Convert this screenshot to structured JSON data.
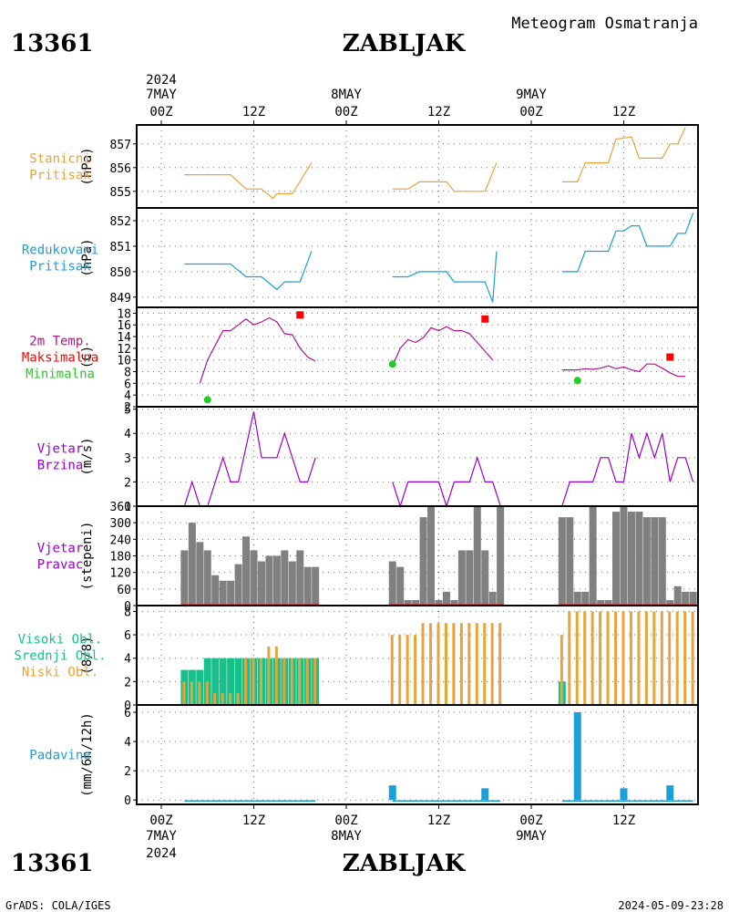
{
  "header": {
    "station_id": "13361",
    "station_name": "ZABLJAK",
    "subtitle": "Meteogram Osmatranja",
    "footer_left": "GrADS: COLA/IGES",
    "footer_right": "2024-05-09-23:28"
  },
  "time_axis": {
    "year": "2024",
    "ticks": [
      "00Z",
      "12Z",
      "00Z",
      "12Z",
      "00Z",
      "12Z"
    ],
    "days": [
      {
        "label": "7MAY",
        "hour": 0
      },
      {
        "label": "8MAY",
        "hour": 24
      },
      {
        "label": "9MAY",
        "hour": 48
      }
    ]
  },
  "colors": {
    "station_pressure": "#e8a33a",
    "reduced_pressure": "#1a9fd6",
    "temperature": "#b0148f",
    "temp_max": "#ff0000",
    "temp_min": "#22cc22",
    "wind": "#9900cc",
    "wind_dir_bar": "#808080",
    "wind_dir_base": "#cc3333",
    "high_cloud": "#18c08c",
    "mid_cloud": "#18c08c",
    "low_cloud": "#e8a33a",
    "precip": "#1a9fd6"
  },
  "chart_data": [
    {
      "type": "line",
      "name": "station_pressure",
      "labels": [
        "Stanicni",
        "Pritisak"
      ],
      "ylabel": "(hPa)",
      "ylim": [
        854.3,
        857.8
      ],
      "yticks": [
        855,
        856,
        857
      ],
      "segments": [
        [
          [
            3,
            855.7
          ],
          [
            9,
            855.7
          ],
          [
            11,
            855.1
          ],
          [
            13,
            855.1
          ],
          [
            14.5,
            854.7
          ],
          [
            15,
            854.9
          ],
          [
            17,
            854.9
          ],
          [
            19.5,
            856.2
          ]
        ],
        [
          [
            30,
            855.1
          ],
          [
            32,
            855.1
          ],
          [
            33.5,
            855.4
          ],
          [
            37,
            855.4
          ],
          [
            38,
            855
          ],
          [
            42,
            855
          ],
          [
            43.5,
            856.2
          ]
        ],
        [
          [
            52,
            855.4
          ],
          [
            54,
            855.4
          ],
          [
            55,
            856.2
          ],
          [
            58,
            856.2
          ],
          [
            59,
            857.2
          ],
          [
            61,
            857.3
          ],
          [
            62,
            856.4
          ],
          [
            65,
            856.4
          ],
          [
            66,
            857
          ],
          [
            67,
            857
          ],
          [
            68,
            857.7
          ]
        ]
      ]
    },
    {
      "type": "line",
      "name": "reduced_pressure",
      "labels": [
        "Redukovani",
        "Pritisak"
      ],
      "ylabel": "(hPa)",
      "ylim": [
        848.6,
        852.5
      ],
      "yticks": [
        849,
        850,
        851,
        852
      ],
      "segments": [
        [
          [
            3,
            850.3
          ],
          [
            9,
            850.3
          ],
          [
            11,
            849.8
          ],
          [
            13,
            849.8
          ],
          [
            15,
            849.3
          ],
          [
            16,
            849.6
          ],
          [
            18,
            849.6
          ],
          [
            19.5,
            850.8
          ]
        ],
        [
          [
            30,
            849.8
          ],
          [
            32,
            849.8
          ],
          [
            33.5,
            850
          ],
          [
            37,
            850
          ],
          [
            38,
            849.6
          ],
          [
            42,
            849.6
          ],
          [
            43,
            848.8
          ],
          [
            43.5,
            850.8
          ]
        ],
        [
          [
            52,
            850
          ],
          [
            54,
            850
          ],
          [
            55,
            850.8
          ],
          [
            58,
            850.8
          ],
          [
            59,
            851.6
          ],
          [
            60,
            851.6
          ],
          [
            61,
            851.8
          ],
          [
            62,
            851.8
          ],
          [
            63,
            851
          ],
          [
            66,
            851
          ],
          [
            67,
            851.5
          ],
          [
            68,
            851.5
          ],
          [
            69,
            852.3
          ]
        ]
      ]
    },
    {
      "type": "line",
      "name": "temperature_2m",
      "labels": [
        "2m Temp.",
        "Maksimalna",
        "Minimalna"
      ],
      "ylabel": "(C)",
      "ylim": [
        2,
        19
      ],
      "yticks": [
        2,
        4,
        6,
        8,
        10,
        12,
        14,
        16,
        18
      ],
      "segments": [
        [
          [
            5,
            6
          ],
          [
            6,
            10
          ],
          [
            7,
            12.5
          ],
          [
            8,
            15
          ],
          [
            9,
            15
          ],
          [
            10,
            16
          ],
          [
            11,
            17
          ],
          [
            12,
            16
          ],
          [
            13,
            16.5
          ],
          [
            14,
            17.2
          ],
          [
            15,
            16.5
          ],
          [
            16,
            14.5
          ],
          [
            17,
            14.3
          ],
          [
            18,
            12
          ],
          [
            19,
            10.5
          ],
          [
            20,
            9.8
          ]
        ],
        [
          [
            30,
            9
          ],
          [
            31,
            12
          ],
          [
            32,
            13.5
          ],
          [
            33,
            13
          ],
          [
            34,
            13.8
          ],
          [
            35,
            15.5
          ],
          [
            36,
            15
          ],
          [
            37,
            15.7
          ],
          [
            38,
            15
          ],
          [
            39,
            15
          ],
          [
            40,
            14.5
          ],
          [
            41,
            13
          ],
          [
            42,
            11.5
          ],
          [
            43,
            10
          ]
        ],
        [
          [
            52,
            8.3
          ],
          [
            53,
            8.3
          ],
          [
            54,
            8.3
          ],
          [
            55,
            8.5
          ],
          [
            56,
            8.4
          ],
          [
            57,
            8.6
          ],
          [
            58,
            9
          ],
          [
            59,
            8.5
          ],
          [
            60,
            8.8
          ],
          [
            61,
            8.3
          ],
          [
            62,
            8
          ],
          [
            63,
            9.3
          ],
          [
            64,
            9.3
          ],
          [
            65,
            8.6
          ],
          [
            66,
            7.8
          ],
          [
            67,
            7.2
          ],
          [
            68,
            7.2
          ]
        ]
      ],
      "maximum": [
        [
          18,
          17.7
        ],
        [
          42,
          17
        ]
      ],
      "minimum": [
        [
          6,
          3.2
        ],
        [
          30,
          9.3
        ],
        [
          54,
          6.5
        ]
      ],
      "maximum_extra": [
        [
          66,
          10.5
        ]
      ]
    },
    {
      "type": "line",
      "name": "wind_speed",
      "labels": [
        "Vjetar",
        "Brzina"
      ],
      "ylabel": "(m/s)",
      "ylim": [
        1,
        5.1
      ],
      "yticks": [
        1,
        2,
        3,
        4,
        5
      ],
      "segments": [
        [
          [
            3,
            1
          ],
          [
            4,
            2
          ],
          [
            5,
            1
          ],
          [
            6,
            1
          ],
          [
            8,
            3
          ],
          [
            9,
            2
          ],
          [
            10,
            2
          ],
          [
            12,
            4.9
          ],
          [
            13,
            3
          ],
          [
            15,
            3
          ],
          [
            16,
            4
          ],
          [
            18,
            2
          ],
          [
            19,
            2
          ],
          [
            20,
            3
          ]
        ],
        [
          [
            30,
            2
          ],
          [
            31,
            1
          ],
          [
            32,
            2
          ],
          [
            36,
            2
          ],
          [
            37,
            1
          ],
          [
            38,
            2
          ],
          [
            40,
            2
          ],
          [
            41,
            3
          ],
          [
            42,
            2
          ],
          [
            43,
            2
          ],
          [
            44,
            1
          ]
        ],
        [
          [
            52,
            1
          ],
          [
            53,
            2
          ],
          [
            56,
            2
          ],
          [
            57,
            3
          ],
          [
            58,
            3
          ],
          [
            59,
            2
          ],
          [
            60,
            2
          ],
          [
            61,
            4
          ],
          [
            62,
            3
          ],
          [
            63,
            4
          ],
          [
            64,
            3
          ],
          [
            65,
            4
          ],
          [
            66,
            2
          ],
          [
            67,
            3
          ],
          [
            68,
            3
          ],
          [
            69,
            2
          ]
        ]
      ]
    },
    {
      "type": "bar",
      "name": "wind_direction",
      "labels": [
        "Vjetar",
        "Pravac"
      ],
      "ylabel": "(stepeni)",
      "ylim": [
        0,
        360
      ],
      "yticks": [
        0,
        60,
        120,
        180,
        240,
        300,
        360
      ],
      "x": [
        3,
        4,
        5,
        6,
        7,
        8,
        9,
        10,
        11,
        12,
        13,
        14,
        15,
        16,
        17,
        18,
        19,
        20,
        30,
        31,
        32,
        33,
        34,
        35,
        36,
        37,
        38,
        39,
        40,
        41,
        42,
        43,
        44,
        52,
        53,
        54,
        55,
        56,
        57,
        58,
        59,
        60,
        61,
        62,
        63,
        64,
        65,
        66,
        67,
        68,
        69
      ],
      "values": [
        200,
        300,
        230,
        200,
        110,
        90,
        90,
        150,
        250,
        200,
        160,
        180,
        180,
        200,
        160,
        200,
        140,
        140,
        160,
        140,
        20,
        20,
        320,
        360,
        20,
        50,
        20,
        200,
        200,
        360,
        200,
        50,
        360,
        320,
        320,
        50,
        50,
        360,
        20,
        20,
        340,
        360,
        340,
        340,
        320,
        320,
        320,
        20,
        70,
        50,
        50
      ]
    },
    {
      "type": "bar",
      "name": "cloud_cover",
      "labels": [
        "Visoki Obl.",
        "Srednji Obl.",
        "Niski Obl."
      ],
      "ylabel": "(8/8)",
      "ylim": [
        0,
        8.5
      ],
      "yticks": [
        0,
        2,
        4,
        6,
        8
      ],
      "x": [
        3,
        4,
        5,
        6,
        7,
        8,
        9,
        10,
        11,
        12,
        13,
        14,
        15,
        16,
        17,
        18,
        19,
        20,
        30,
        31,
        32,
        33,
        34,
        35,
        36,
        37,
        38,
        39,
        40,
        41,
        42,
        43,
        44,
        52,
        53,
        54,
        55,
        56,
        57,
        58,
        59,
        60,
        61,
        62,
        63,
        64,
        65,
        66,
        67,
        68,
        69
      ],
      "series": [
        {
          "name": "Visoki Obl.",
          "values": [
            3,
            3,
            3,
            4,
            4,
            4,
            4,
            4,
            4,
            4,
            4,
            4,
            4,
            4,
            4,
            4,
            4,
            4,
            0,
            0,
            0,
            0,
            0,
            0,
            0,
            0,
            0,
            0,
            0,
            0,
            0,
            0,
            0,
            2,
            0,
            0,
            0,
            0,
            0,
            0,
            0,
            0,
            0,
            0,
            0,
            0,
            0,
            0,
            0,
            0,
            0
          ]
        },
        {
          "name": "Niski Obl.",
          "values": [
            2,
            2,
            2,
            2,
            1,
            1,
            1,
            1,
            1,
            1,
            1,
            2,
            2,
            1,
            1,
            2,
            2,
            1,
            6,
            6,
            6,
            6,
            7,
            7,
            7,
            7,
            7,
            7,
            7,
            7,
            7,
            7,
            7,
            6,
            8,
            8,
            8,
            8,
            8,
            8,
            8,
            8,
            8,
            8,
            8,
            8,
            8,
            8,
            8,
            8,
            8
          ]
        }
      ],
      "extra_low": [
        [
          3,
          2
        ],
        [
          4,
          2
        ],
        [
          5,
          2
        ],
        [
          6,
          2
        ],
        [
          11,
          4
        ],
        [
          12,
          4
        ],
        [
          13,
          4
        ],
        [
          14,
          5
        ],
        [
          15,
          5
        ],
        [
          16,
          4
        ],
        [
          17,
          4
        ],
        [
          18,
          4
        ],
        [
          19,
          4
        ],
        [
          20,
          4
        ]
      ]
    },
    {
      "type": "bar",
      "name": "precipitation",
      "labels": [
        "Padavine"
      ],
      "ylabel": "(mm/6h/12h)",
      "ylim": [
        -0.3,
        6.5
      ],
      "yticks": [
        0,
        2,
        4,
        6
      ],
      "x": [
        30,
        42,
        54,
        60,
        66
      ],
      "values": [
        1,
        0.8,
        6,
        0.8,
        1
      ],
      "trace_segments": [
        [
          3,
          20
        ],
        [
          30,
          44
        ],
        [
          52,
          69
        ]
      ]
    }
  ]
}
